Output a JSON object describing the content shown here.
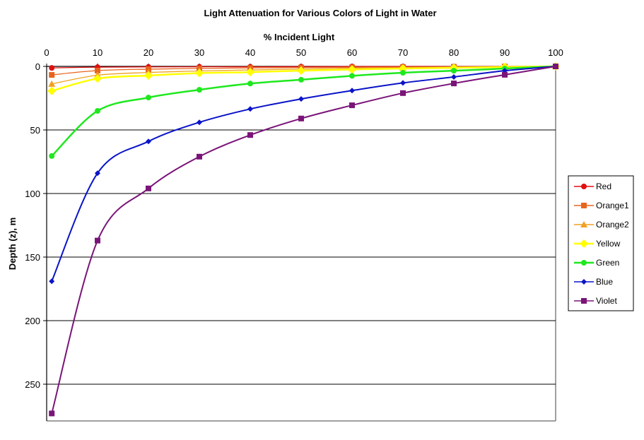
{
  "chart_data": {
    "type": "line",
    "title": "Light Attenuation for Various Colors of Light in Water",
    "xlabel": "% Incident Light",
    "ylabel": "Depth (z), m",
    "xlim": [
      0,
      100
    ],
    "ylim": [
      0,
      280
    ],
    "y_inverted": true,
    "x_axis_position": "top",
    "x_ticks": [
      0,
      10,
      20,
      30,
      40,
      50,
      60,
      70,
      80,
      90,
      100
    ],
    "y_ticks": [
      0,
      50,
      100,
      150,
      200,
      250
    ],
    "grid": {
      "horizontal": true,
      "vertical": false
    },
    "legend_position": "right",
    "x": [
      1,
      10,
      20,
      30,
      40,
      50,
      60,
      70,
      80,
      90,
      100
    ],
    "series": [
      {
        "name": "Red",
        "color": "#e01010",
        "marker": "circle",
        "values": [
          1.2,
          0.6,
          0.4,
          0.3,
          0.3,
          0.2,
          0.1,
          0.1,
          0.1,
          0.0,
          0
        ]
      },
      {
        "name": "Orange1",
        "color": "#e8641e",
        "marker": "square",
        "values": [
          6.7,
          3.3,
          2.2,
          1.6,
          1.2,
          0.9,
          0.7,
          0.5,
          0.3,
          0.1,
          0
        ]
      },
      {
        "name": "Orange2",
        "color": "#f0a020",
        "marker": "triangle",
        "values": [
          13.8,
          6.9,
          4.8,
          3.6,
          2.8,
          2.1,
          1.5,
          1.1,
          0.7,
          0.3,
          0
        ]
      },
      {
        "name": "Yellow",
        "color": "#ffff00",
        "marker": "diamond",
        "values": [
          19.3,
          9.6,
          7.2,
          5.3,
          4.5,
          3.3,
          2.4,
          1.7,
          1.1,
          0.5,
          0
        ]
      },
      {
        "name": "Green",
        "color": "#1ee81e",
        "marker": "circle",
        "values": [
          70.5,
          35,
          24.5,
          18.4,
          13.5,
          10.5,
          7.4,
          5,
          3.4,
          1.7,
          0
        ]
      },
      {
        "name": "Blue",
        "color": "#0a14c8",
        "marker": "diamond-small",
        "values": [
          169,
          84,
          59,
          44,
          33.5,
          25.6,
          19,
          13,
          8.3,
          3.4,
          0
        ]
      },
      {
        "name": "Violet",
        "color": "#7a1478",
        "marker": "square",
        "values": [
          273,
          137,
          96,
          71,
          54,
          41,
          30.6,
          21,
          13.4,
          6.6,
          0
        ]
      }
    ]
  }
}
